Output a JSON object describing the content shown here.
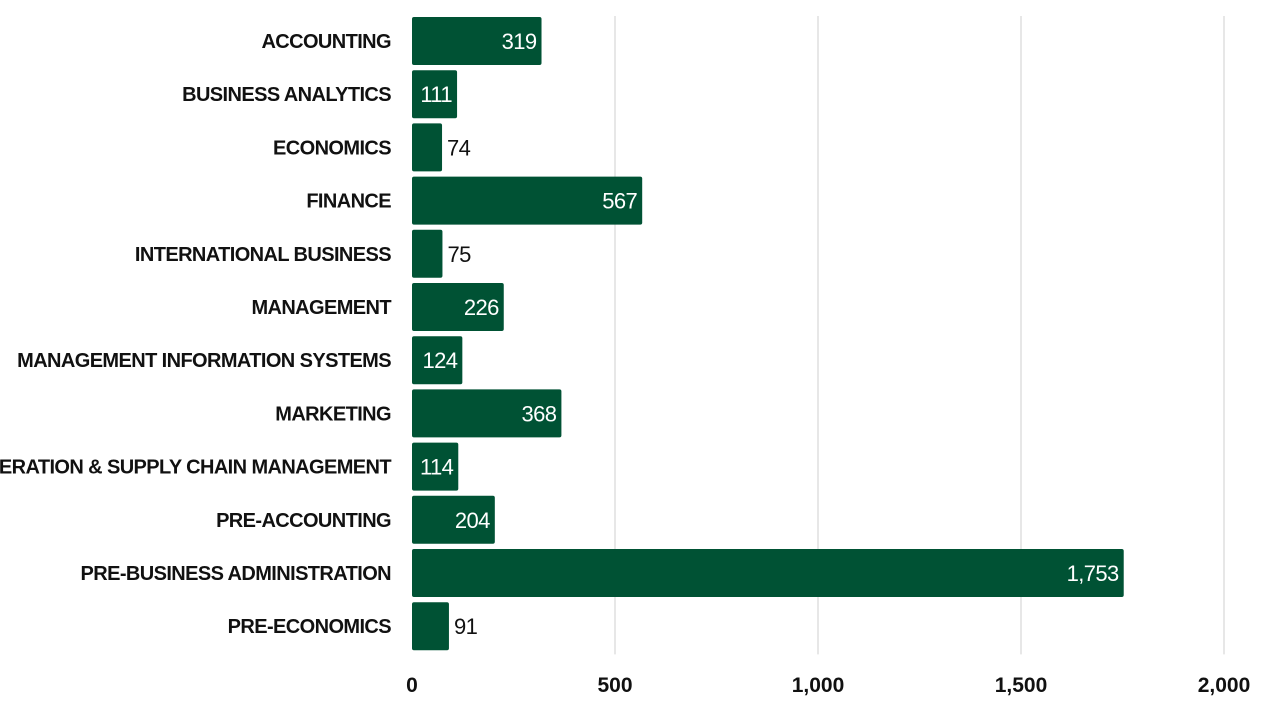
{
  "chart_data": {
    "type": "bar",
    "orientation": "horizontal",
    "categories": [
      "ACCOUNTING",
      "BUSINESS ANALYTICS",
      "ECONOMICS",
      "FINANCE",
      "INTERNATIONAL BUSINESS",
      "MANAGEMENT",
      "MANAGEMENT INFORMATION SYSTEMS",
      "MARKETING",
      "OPERATION & SUPPLY CHAIN MANAGEMENT",
      "PRE-ACCOUNTING",
      "PRE-BUSINESS ADMINISTRATION",
      "PRE-ECONOMICS"
    ],
    "values": [
      319,
      111,
      74,
      567,
      75,
      226,
      124,
      368,
      114,
      204,
      1753,
      91
    ],
    "value_labels": [
      "319",
      "111",
      "74",
      "567",
      "75",
      "226",
      "124",
      "368",
      "114",
      "204",
      "1,753",
      "91"
    ],
    "xlim": [
      0,
      2000
    ],
    "x_ticks": [
      0,
      500,
      1000,
      1500,
      2000
    ],
    "x_tick_labels": [
      "0",
      "500",
      "1,000",
      "1,500",
      "2,000"
    ],
    "title": "",
    "xlabel": "",
    "ylabel": "",
    "grid": "vertical",
    "legend": "none",
    "colors": {
      "bar": "#005234",
      "grid": "#cfcfcf",
      "text": "#111111",
      "label_inside": "#ffffff"
    }
  }
}
